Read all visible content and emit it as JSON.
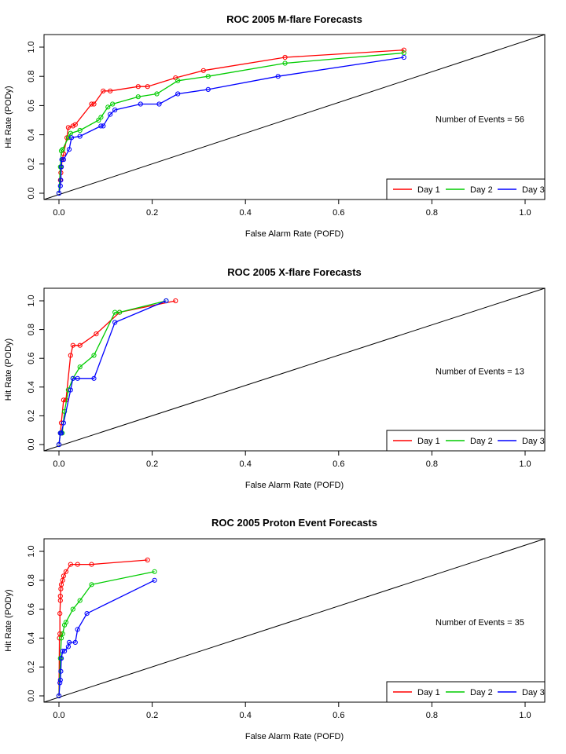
{
  "chart_data": [
    {
      "type": "line",
      "title": "ROC  2005 M-flare Forecasts",
      "xlabel": "False Alarm Rate (POFD)",
      "ylabel": "Hit Rate (PODy)",
      "xlim": [
        0.0,
        1.0
      ],
      "ylim": [
        0.0,
        1.0
      ],
      "x_ticks": [
        "0.0",
        "0.2",
        "0.4",
        "0.6",
        "0.8",
        "1.0"
      ],
      "y_ticks": [
        "0.0",
        "0.2",
        "0.4",
        "0.6",
        "0.8",
        "1.0"
      ],
      "annotation": "Number of Events =  56",
      "legend_position": "bottom-right",
      "diagonal": true,
      "series": [
        {
          "name": "Day 1",
          "color": "#ff0000",
          "x": [
            0.0,
            0.003,
            0.004,
            0.005,
            0.007,
            0.01,
            0.017,
            0.02,
            0.03,
            0.035,
            0.07,
            0.075,
            0.095,
            0.11,
            0.17,
            0.19,
            0.25,
            0.31,
            0.485,
            0.74
          ],
          "y": [
            0.0,
            0.09,
            0.14,
            0.18,
            0.23,
            0.27,
            0.38,
            0.45,
            0.46,
            0.47,
            0.61,
            0.61,
            0.7,
            0.7,
            0.73,
            0.73,
            0.79,
            0.84,
            0.93,
            0.98
          ]
        },
        {
          "name": "Day 2",
          "color": "#00cc00",
          "x": [
            0.0,
            0.003,
            0.005,
            0.008,
            0.02,
            0.025,
            0.045,
            0.085,
            0.09,
            0.105,
            0.115,
            0.17,
            0.21,
            0.255,
            0.32,
            0.485,
            0.74
          ],
          "y": [
            0.0,
            0.18,
            0.29,
            0.3,
            0.38,
            0.41,
            0.43,
            0.5,
            0.52,
            0.59,
            0.61,
            0.66,
            0.68,
            0.77,
            0.8,
            0.89,
            0.96
          ]
        },
        {
          "name": "Day 3",
          "color": "#0000ff",
          "x": [
            0.0,
            0.003,
            0.004,
            0.005,
            0.006,
            0.01,
            0.022,
            0.027,
            0.045,
            0.09,
            0.095,
            0.11,
            0.12,
            0.175,
            0.215,
            0.255,
            0.32,
            0.47,
            0.74
          ],
          "y": [
            0.0,
            0.05,
            0.09,
            0.18,
            0.23,
            0.23,
            0.3,
            0.38,
            0.39,
            0.46,
            0.46,
            0.54,
            0.57,
            0.61,
            0.61,
            0.68,
            0.71,
            0.8,
            0.93
          ]
        }
      ]
    },
    {
      "type": "line",
      "title": "ROC  2005 X-flare Forecasts",
      "xlabel": "False Alarm Rate (POFD)",
      "ylabel": "Hit Rate (PODy)",
      "xlim": [
        0.0,
        1.0
      ],
      "ylim": [
        0.0,
        1.0
      ],
      "x_ticks": [
        "0.0",
        "0.2",
        "0.4",
        "0.6",
        "0.8",
        "1.0"
      ],
      "y_ticks": [
        "0.0",
        "0.2",
        "0.4",
        "0.6",
        "0.8",
        "1.0"
      ],
      "annotation": "Number of Events =  13",
      "legend_position": "bottom-right",
      "diagonal": true,
      "series": [
        {
          "name": "Day 1",
          "color": "#ff0000",
          "x": [
            0.0,
            0.003,
            0.005,
            0.01,
            0.015,
            0.025,
            0.03,
            0.045,
            0.08,
            0.13,
            0.25
          ],
          "y": [
            0.0,
            0.08,
            0.15,
            0.31,
            0.31,
            0.62,
            0.69,
            0.69,
            0.77,
            0.92,
            1.0
          ]
        },
        {
          "name": "Day 2",
          "color": "#00cc00",
          "x": [
            0.0,
            0.003,
            0.007,
            0.012,
            0.02,
            0.03,
            0.045,
            0.075,
            0.12,
            0.13,
            0.23
          ],
          "y": [
            0.0,
            0.08,
            0.08,
            0.23,
            0.38,
            0.46,
            0.54,
            0.62,
            0.92,
            0.92,
            1.0
          ]
        },
        {
          "name": "Day 3",
          "color": "#0000ff",
          "x": [
            0.0,
            0.003,
            0.005,
            0.01,
            0.025,
            0.03,
            0.04,
            0.075,
            0.12,
            0.23
          ],
          "y": [
            0.0,
            0.08,
            0.08,
            0.15,
            0.38,
            0.46,
            0.46,
            0.46,
            0.85,
            1.0
          ]
        }
      ]
    },
    {
      "type": "line",
      "title": "ROC  2005 Proton Event Forecasts",
      "xlabel": "False Alarm Rate (POFD)",
      "ylabel": "Hit Rate (PODy)",
      "xlim": [
        0.0,
        1.0
      ],
      "ylim": [
        0.0,
        1.0
      ],
      "x_ticks": [
        "0.0",
        "0.2",
        "0.4",
        "0.6",
        "0.8",
        "1.0"
      ],
      "y_ticks": [
        "0.0",
        "0.2",
        "0.4",
        "0.6",
        "0.8",
        "1.0"
      ],
      "annotation": "Number of Events =  35",
      "legend_position": "bottom-right",
      "diagonal": true,
      "series": [
        {
          "name": "Day 1",
          "color": "#ff0000",
          "x": [
            0.0,
            0.001,
            0.002,
            0.002,
            0.003,
            0.003,
            0.004,
            0.005,
            0.008,
            0.01,
            0.015,
            0.025,
            0.04,
            0.07,
            0.19
          ],
          "y": [
            0.0,
            0.4,
            0.43,
            0.57,
            0.66,
            0.69,
            0.74,
            0.77,
            0.8,
            0.83,
            0.86,
            0.91,
            0.91,
            0.91,
            0.94
          ]
        },
        {
          "name": "Day 2",
          "color": "#00cc00",
          "x": [
            0.0,
            0.003,
            0.005,
            0.008,
            0.012,
            0.015,
            0.03,
            0.045,
            0.07,
            0.205
          ],
          "y": [
            0.0,
            0.26,
            0.4,
            0.43,
            0.49,
            0.51,
            0.6,
            0.66,
            0.77,
            0.86
          ]
        },
        {
          "name": "Day 3",
          "color": "#0000ff",
          "x": [
            0.0,
            0.002,
            0.003,
            0.004,
            0.005,
            0.008,
            0.012,
            0.02,
            0.022,
            0.035,
            0.04,
            0.06,
            0.205
          ],
          "y": [
            0.0,
            0.09,
            0.11,
            0.17,
            0.26,
            0.31,
            0.31,
            0.34,
            0.37,
            0.37,
            0.46,
            0.57,
            0.8
          ]
        }
      ]
    }
  ]
}
